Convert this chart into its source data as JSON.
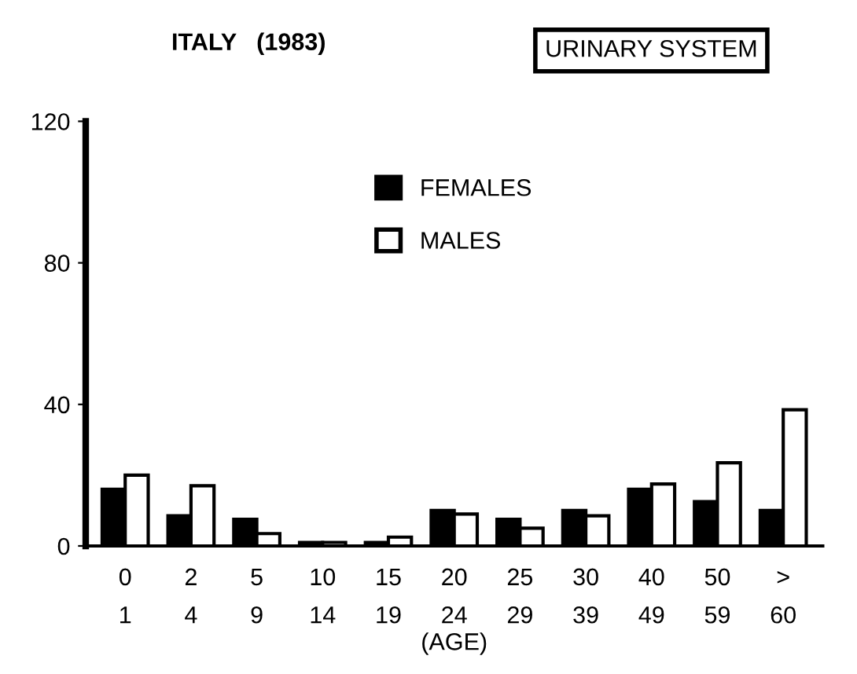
{
  "chart_data": {
    "type": "bar",
    "title": "ITALY   (1983)",
    "xlabel": "(AGE)",
    "annotations": [
      "URINARY SYSTEM"
    ],
    "categories": [
      "0\n1",
      "2\n4",
      "5\n9",
      "10\n14",
      "15\n19",
      "20\n24",
      "25\n29",
      "30\n39",
      "40\n49",
      "50\n59",
      ">\n60"
    ],
    "series": [
      {
        "name": "FEMALES",
        "color": "#000000",
        "values": [
          16,
          8.5,
          7.5,
          1,
          1,
          10,
          7.5,
          10,
          16,
          12.5,
          10
        ]
      },
      {
        "name": "MALES",
        "color": "#ffffff",
        "values": [
          20,
          17,
          3.5,
          1,
          2.5,
          9,
          5,
          8.5,
          17.5,
          23.5,
          38.5
        ]
      }
    ],
    "ylim": [
      0,
      120
    ],
    "yticks": [
      0,
      40,
      80,
      120
    ],
    "grid": false,
    "legend": "top"
  }
}
